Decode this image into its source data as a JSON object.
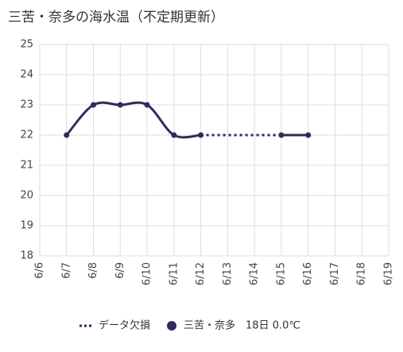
{
  "chart_data": {
    "type": "line",
    "title": "三苦・奈多の海水温（不定期更新）",
    "categories": [
      "6/6",
      "6/7",
      "6/8",
      "6/9",
      "6/10",
      "6/11",
      "6/12",
      "6/13",
      "6/14",
      "6/15",
      "6/16",
      "6/17",
      "6/18",
      "6/19"
    ],
    "series": [
      {
        "name": "データ欠損",
        "color": "#2e2b5f",
        "dashed": true,
        "values": [
          null,
          null,
          null,
          null,
          null,
          null,
          22,
          null,
          null,
          22,
          null,
          null,
          null,
          null
        ]
      },
      {
        "name": "三苦・奈多　18日 0.0℃",
        "color": "#2e2b5f",
        "dashed": false,
        "values": [
          null,
          22,
          23,
          23,
          23,
          22,
          22,
          null,
          null,
          22,
          22,
          null,
          null,
          null
        ]
      }
    ],
    "ylim": [
      18,
      25
    ],
    "yticks": [
      18,
      19,
      20,
      21,
      22,
      23,
      24,
      25
    ],
    "grid": true
  }
}
